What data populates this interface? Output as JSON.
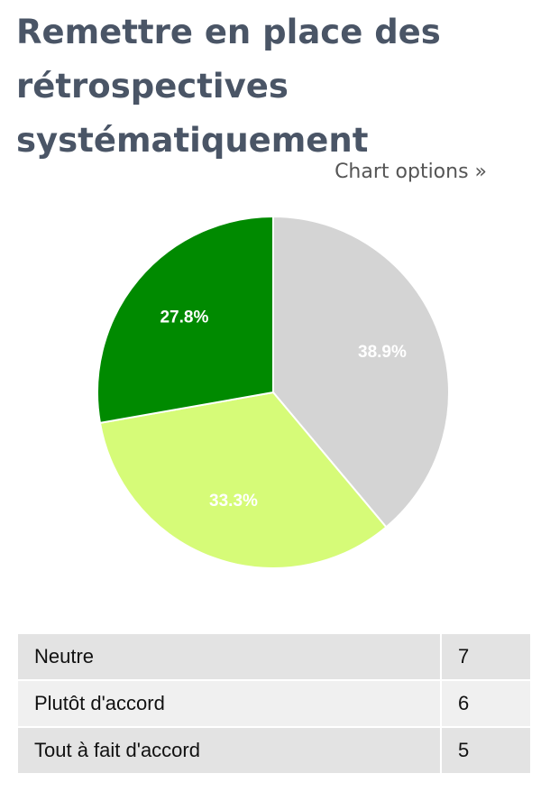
{
  "title": "Remettre en place des rétrospectives systématiquement",
  "chart_options_label": "Chart options »",
  "chart_data": {
    "type": "pie",
    "title": "Remettre en place des rétrospectives systématiquement",
    "categories": [
      "Neutre",
      "Plutôt d'accord",
      "Tout à fait d'accord"
    ],
    "values": [
      7,
      6,
      5
    ],
    "percent_labels": [
      "38.9%",
      "33.3%",
      "27.8%"
    ],
    "colors": [
      "#d4d4d4",
      "#d6fb78",
      "#008a00"
    ]
  },
  "table": {
    "rows": [
      {
        "label": "Neutre",
        "value": "7"
      },
      {
        "label": "Plutôt d'accord",
        "value": "6"
      },
      {
        "label": "Tout à fait d'accord",
        "value": "5"
      }
    ]
  }
}
